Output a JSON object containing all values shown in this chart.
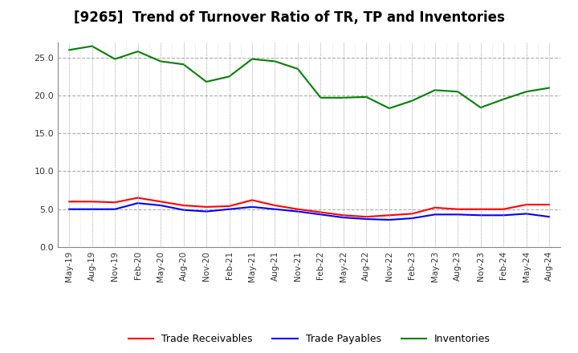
{
  "title": "[9265]  Trend of Turnover Ratio of TR, TP and Inventories",
  "x_labels": [
    "May-19",
    "Aug-19",
    "Nov-19",
    "Feb-20",
    "May-20",
    "Aug-20",
    "Nov-20",
    "Feb-21",
    "May-21",
    "Aug-21",
    "Nov-21",
    "Feb-22",
    "May-22",
    "Aug-22",
    "Nov-22",
    "Feb-23",
    "May-23",
    "Aug-23",
    "Nov-23",
    "Feb-24",
    "May-24",
    "Aug-24"
  ],
  "trade_receivables": [
    6.0,
    6.0,
    5.9,
    6.5,
    6.0,
    5.5,
    5.3,
    5.4,
    6.2,
    5.5,
    5.0,
    4.6,
    4.2,
    4.0,
    4.2,
    4.4,
    5.2,
    5.0,
    5.0,
    5.0,
    5.6,
    5.6
  ],
  "trade_payables": [
    5.0,
    5.0,
    5.0,
    5.8,
    5.5,
    4.9,
    4.7,
    5.0,
    5.3,
    5.0,
    4.7,
    4.3,
    3.9,
    3.7,
    3.6,
    3.8,
    4.3,
    4.3,
    4.2,
    4.2,
    4.4,
    4.0
  ],
  "inventories": [
    26.0,
    26.5,
    24.8,
    25.8,
    24.5,
    24.1,
    21.8,
    22.5,
    24.8,
    24.5,
    23.5,
    19.7,
    19.7,
    19.8,
    18.3,
    19.3,
    20.7,
    20.5,
    18.4,
    19.5,
    20.5,
    21.0
  ],
  "ylim": [
    0,
    27
  ],
  "yticks": [
    0.0,
    5.0,
    10.0,
    15.0,
    20.0,
    25.0
  ],
  "line_colors": {
    "trade_receivables": "#FF0000",
    "trade_payables": "#0000FF",
    "inventories": "#008000"
  },
  "legend_labels": [
    "Trade Receivables",
    "Trade Payables",
    "Inventories"
  ],
  "background_color": "#FFFFFF",
  "grid_color": "#999999",
  "title_fontsize": 12,
  "title_fontweight": "bold"
}
